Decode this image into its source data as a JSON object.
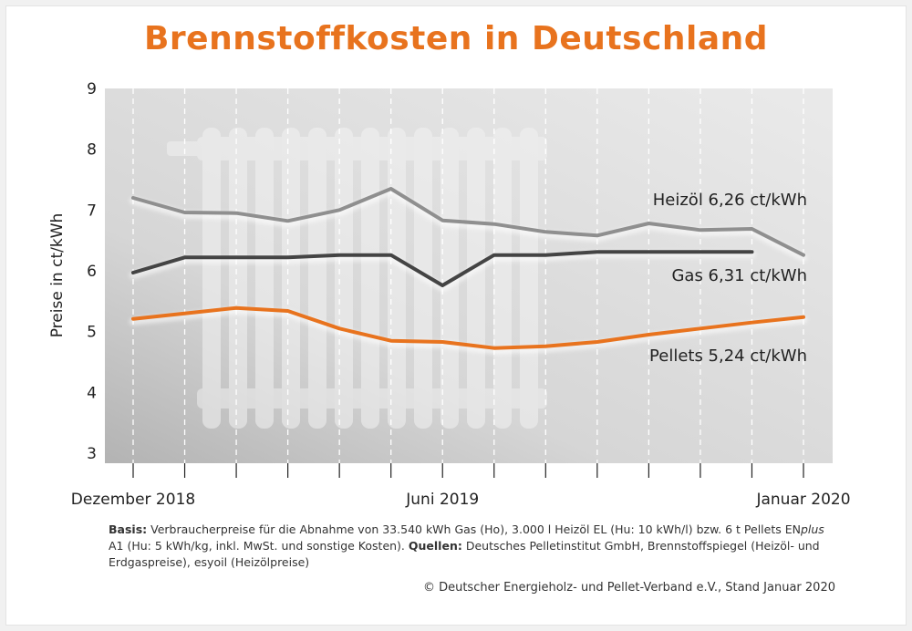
{
  "colors": {
    "accent": "#e8731e",
    "heizoel": "#8f8f8f",
    "gas": "#444444",
    "pellets": "#e8731e"
  },
  "footnote": {
    "basis_label": "Basis:",
    "basis_text_1": "Verbraucherpreise für die Abnahme von 33.540 kWh Gas (Ho), 3.000 l Heizöl EL (Hu: 10 kWh/l) bzw. 6 t Pellets EN",
    "basis_italic": "plus",
    "basis_text_2": "A1 (Hu: 5 kWh/kg, inkl. MwSt. und sonstige Kosten).",
    "sources_label": "Quellen:",
    "sources_text": "Deutsches Pelletinstitut GmbH, Brennstoffspiegel (Heizöl- und Erdgaspreise), esyoil (Heizölpreise)"
  },
  "copyright": "© Deutscher Energieholz- und Pellet-Verband e.V., Stand Januar 2020",
  "chart_data": {
    "type": "line",
    "title": "Brennstoffkosten in Deutschland",
    "xlabel": "",
    "ylabel": "Preise in ct/kWh",
    "ylim": [
      3,
      9
    ],
    "yticks": [
      3,
      4,
      5,
      6,
      7,
      8,
      9
    ],
    "x_periods": 14,
    "x_tick_labels": [
      {
        "index": 0,
        "label": "Dezember 2018"
      },
      {
        "index": 6,
        "label": "Juni 2019"
      },
      {
        "index": 13,
        "label": "Januar 2020"
      }
    ],
    "grid": "vertical dashed",
    "series": [
      {
        "name": "Heizöl",
        "label": "Heizöl 6,26 ct/kWh",
        "x": [
          0,
          1,
          2,
          3,
          4,
          5,
          6,
          7,
          8,
          9,
          10,
          11,
          12,
          13
        ],
        "values": [
          7.2,
          6.96,
          6.95,
          6.82,
          7.0,
          7.35,
          6.83,
          6.77,
          6.64,
          6.58,
          6.78,
          6.67,
          6.69,
          6.26
        ]
      },
      {
        "name": "Gas",
        "label": "Gas  6,31 ct/kWh",
        "x": [
          0,
          1,
          2,
          3,
          4,
          5,
          6,
          7,
          8,
          9,
          10,
          11,
          12
        ],
        "values": [
          5.97,
          6.22,
          6.22,
          6.22,
          6.26,
          6.26,
          5.76,
          6.26,
          6.26,
          6.31,
          6.31,
          6.31,
          6.31
        ]
      },
      {
        "name": "Pellets",
        "label": "Pellets  5,24 ct/kWh",
        "x": [
          0,
          1,
          2,
          3,
          4,
          5,
          6,
          7,
          8,
          9,
          10,
          11,
          12,
          13
        ],
        "values": [
          5.21,
          5.3,
          5.39,
          5.34,
          5.05,
          4.85,
          4.83,
          4.73,
          4.76,
          4.83,
          4.95,
          5.05,
          5.15,
          5.24
        ]
      }
    ]
  }
}
